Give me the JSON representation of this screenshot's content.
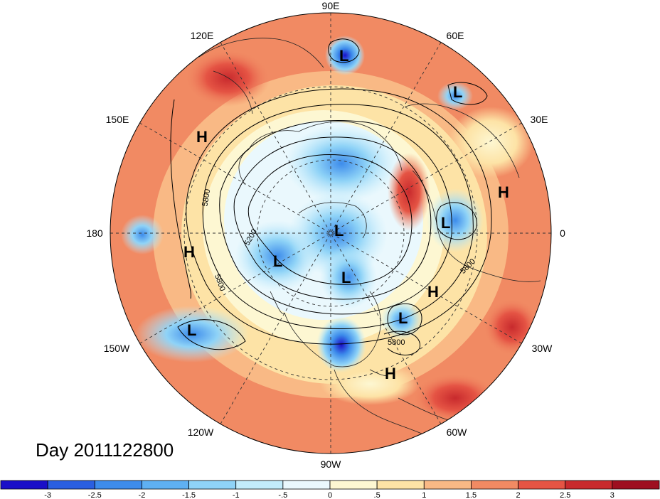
{
  "title": "Day 2011122800",
  "longitude_labels": [
    {
      "id": "90e",
      "text": "90E"
    },
    {
      "id": "60e",
      "text": "60E"
    },
    {
      "id": "30e",
      "text": "30E"
    },
    {
      "id": "0",
      "text": "0"
    },
    {
      "id": "30w",
      "text": "30W"
    },
    {
      "id": "60w",
      "text": "60W"
    },
    {
      "id": "90w",
      "text": "90W"
    },
    {
      "id": "120w",
      "text": "120W"
    },
    {
      "id": "150w",
      "text": "150W"
    },
    {
      "id": "180",
      "text": "180"
    },
    {
      "id": "150e",
      "text": "150E"
    },
    {
      "id": "120e",
      "text": "120E"
    }
  ],
  "pressure_centers": [
    {
      "type": "L"
    },
    {
      "type": "L"
    },
    {
      "type": "L"
    },
    {
      "type": "L"
    },
    {
      "type": "L"
    },
    {
      "type": "L"
    },
    {
      "type": "L"
    },
    {
      "type": "L"
    },
    {
      "type": "H"
    },
    {
      "type": "H"
    },
    {
      "type": "H"
    },
    {
      "type": "H"
    },
    {
      "type": "H"
    }
  ],
  "contour_labels": [
    "5800",
    "5200",
    "5800",
    "5800",
    "5800"
  ],
  "colorbar": {
    "ticks": [
      "-3",
      "-2.5",
      "-2",
      "-1.5",
      "-1",
      "-.5",
      "0",
      ".5",
      "1",
      "1.5",
      "2",
      "2.5",
      "3"
    ],
    "colors": [
      "#1a0fc8",
      "#2a5fe0",
      "#3d8ceb",
      "#5fb0f2",
      "#8fd3f7",
      "#c2ecfb",
      "#eaf8fd",
      "#fdf7d2",
      "#fde3a6",
      "#f9b985",
      "#f18a63",
      "#e55444",
      "#c82a2d",
      "#9e0f20"
    ]
  }
}
